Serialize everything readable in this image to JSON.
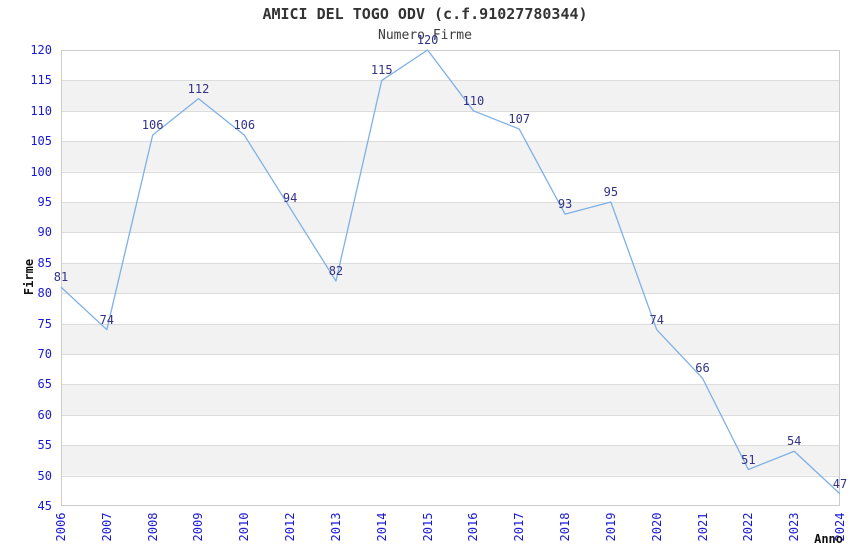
{
  "chart_data": {
    "type": "line",
    "title": "AMICI DEL TOGO ODV (c.f.91027780344)",
    "subtitle": "Numero Firme",
    "xlabel": "Anno",
    "ylabel": "Firme",
    "categories": [
      "2006",
      "2007",
      "2008",
      "2009",
      "2010",
      "2012",
      "2013",
      "2014",
      "2015",
      "2016",
      "2017",
      "2018",
      "2019",
      "2020",
      "2021",
      "2022",
      "2023",
      "2024"
    ],
    "values": [
      81,
      74,
      106,
      112,
      106,
      94,
      82,
      115,
      120,
      110,
      107,
      93,
      95,
      74,
      66,
      51,
      54,
      47
    ],
    "ylim": [
      45,
      120
    ],
    "ytick_step": 5,
    "grid": true,
    "legend": "none",
    "data_labels_shown": true,
    "colors": {
      "line": "#7fb0e6",
      "tick_label": "#1a1ad6",
      "data_label": "#333388",
      "band": "#f2f2f2",
      "gridline": "#dcdcdc",
      "plot_border": "#cccccc",
      "title": "#333333"
    }
  }
}
